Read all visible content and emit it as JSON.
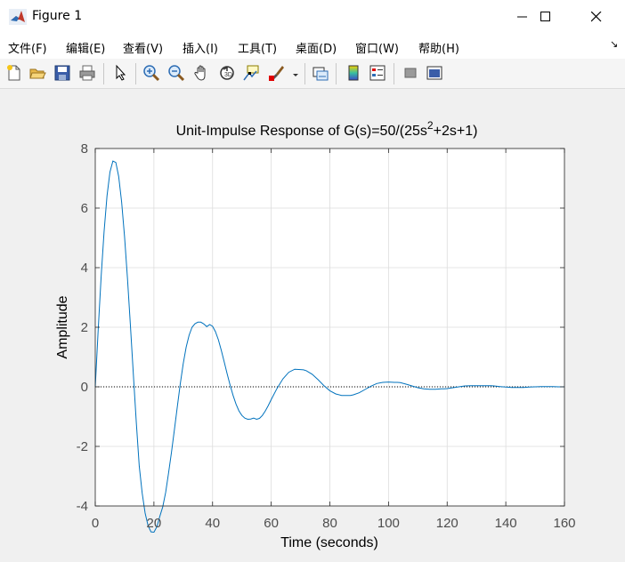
{
  "window": {
    "title": "Figure 1",
    "controls": {
      "minimize": "minimize",
      "maximize": "maximize",
      "close": "close"
    }
  },
  "menu": {
    "items": [
      "文件(F)",
      "编辑(E)",
      "查看(V)",
      "插入(I)",
      "工具(T)",
      "桌面(D)",
      "窗口(W)",
      "帮助(H)"
    ],
    "overflow": "↘"
  },
  "toolbar": {
    "icons": [
      "new-figure-icon",
      "open-file-icon",
      "save-icon",
      "print-icon",
      "edit-plot-arrow-icon",
      "zoom-in-icon",
      "zoom-out-icon",
      "pan-hand-icon",
      "rotate-3d-icon",
      "data-cursor-icon",
      "brush-icon",
      "brush-dropdown-icon",
      "link-plot-icon",
      "colorbar-icon",
      "legend-icon",
      "hide-plot-tools-icon",
      "show-plot-tools-icon"
    ]
  },
  "chart_data": {
    "type": "line",
    "title_prefix": "Unit-Impulse Response of G(s)=50/(25s",
    "title_sup": "2",
    "title_suffix": "+2s+1)",
    "xlabel": "Time (seconds)",
    "ylabel": "Amplitude",
    "xlim": [
      0,
      160
    ],
    "ylim": [
      -4,
      8
    ],
    "xticks": [
      0,
      20,
      40,
      60,
      80,
      100,
      120,
      140,
      160
    ],
    "yticks": [
      -4,
      -2,
      0,
      2,
      4,
      6,
      8
    ],
    "grid": true,
    "reference_line": {
      "y": 0,
      "style": "dotted",
      "color": "#000000"
    },
    "series": [
      {
        "color": "#0072bd",
        "x": [
          0,
          1,
          2,
          3,
          4,
          5,
          6,
          7,
          8,
          9,
          10,
          11,
          12,
          13,
          14,
          15,
          16,
          17,
          18,
          19,
          20,
          21,
          22,
          23,
          24,
          25,
          26,
          27,
          28,
          29,
          30,
          31,
          32,
          33,
          34,
          35,
          36,
          37,
          38,
          39,
          40,
          41,
          42,
          43,
          44,
          45,
          46,
          47,
          48,
          49,
          50,
          51,
          52,
          53,
          54,
          55,
          56,
          57,
          58,
          59,
          60,
          62,
          64,
          66,
          68,
          70,
          71,
          72,
          74,
          76,
          78,
          80,
          82,
          84,
          86,
          87,
          88,
          90,
          92,
          94,
          96,
          98,
          100,
          102,
          103,
          104,
          106,
          108,
          110,
          112,
          114,
          116,
          118,
          119,
          120,
          122,
          124,
          126,
          128,
          130,
          132,
          134,
          135,
          136,
          138,
          140,
          142,
          144,
          146,
          148,
          150,
          152,
          154,
          156,
          158,
          160
        ],
        "values": [
          0,
          1.92,
          3.7,
          5.21,
          6.41,
          7.21,
          7.58,
          7.53,
          7.06,
          6.21,
          5.04,
          3.63,
          2.05,
          0.41,
          -1.2,
          -2.66,
          -3.57,
          -4.24,
          -4.66,
          -4.87,
          -4.88,
          -4.7,
          -4.35,
          -4.03,
          -3.54,
          -2.9,
          -2.2,
          -1.44,
          -0.66,
          0.1,
          0.78,
          1.33,
          1.73,
          2.0,
          2.12,
          2.17,
          2.17,
          2.11,
          2.02,
          2.09,
          2.03,
          1.85,
          1.58,
          1.22,
          0.83,
          0.43,
          0.05,
          -0.29,
          -0.58,
          -0.81,
          -0.96,
          -1.05,
          -1.09,
          -1.08,
          -1.05,
          -1.09,
          -1.06,
          -0.96,
          -0.81,
          -0.63,
          -0.43,
          -0.05,
          0.27,
          0.49,
          0.59,
          0.58,
          0.57,
          0.54,
          0.42,
          0.24,
          0.04,
          -0.13,
          -0.24,
          -0.29,
          -0.29,
          -0.29,
          -0.27,
          -0.2,
          -0.09,
          0.02,
          0.11,
          0.15,
          0.16,
          0.15,
          0.15,
          0.14,
          0.09,
          0.03,
          -0.03,
          -0.07,
          -0.08,
          -0.08,
          -0.07,
          -0.07,
          -0.06,
          -0.03,
          0.0,
          0.03,
          0.04,
          0.04,
          0.04,
          0.04,
          0.04,
          0.03,
          0.01,
          -0.01,
          -0.02,
          -0.02,
          -0.02,
          -0.01,
          0.0,
          0.01,
          0.01,
          0.01,
          0.0,
          0.0
        ]
      }
    ]
  }
}
